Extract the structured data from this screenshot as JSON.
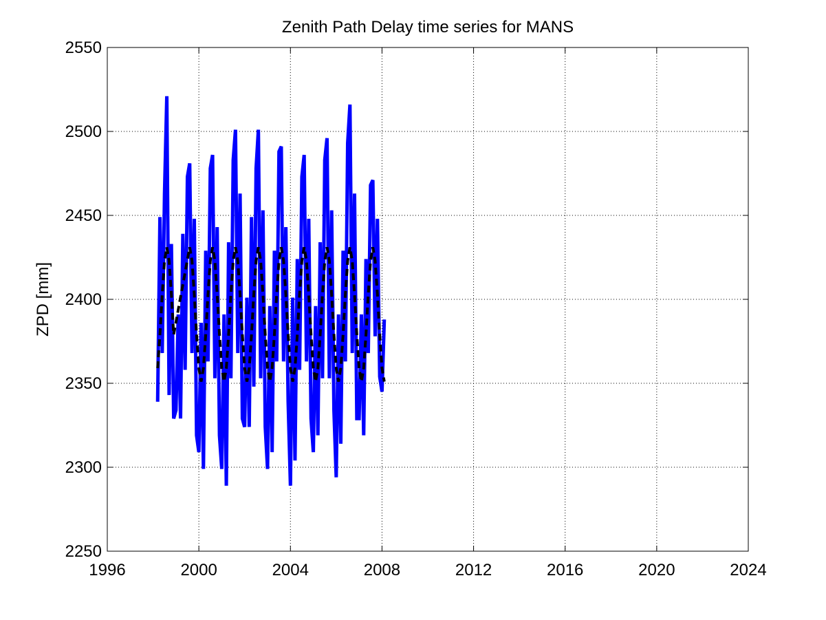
{
  "chart_data": {
    "type": "line",
    "title": "Zenith Path Delay time series for MANS",
    "y_label": "ZPD [mm]",
    "xlim": [
      1996,
      2024
    ],
    "xticks": [
      1996,
      2000,
      2004,
      2008,
      2012,
      2016,
      2020,
      2024
    ],
    "ylim": [
      2250,
      2550
    ],
    "yticks": [
      2250,
      2300,
      2350,
      2400,
      2450,
      2500,
      2550
    ],
    "grid": true,
    "series": [
      {
        "color": "#0000ff",
        "dash": false,
        "x": [
          1998.2,
          1998.3,
          1998.4,
          1998.5,
          1998.6,
          1998.7,
          1998.8,
          1998.9,
          1999.0,
          1999.1,
          1999.2,
          1999.3,
          1999.4,
          1999.5,
          1999.6,
          1999.7,
          1999.8,
          1999.9,
          2000.0,
          2000.1,
          2000.2,
          2000.3,
          2000.4,
          2000.5,
          2000.6,
          2000.7,
          2000.8,
          2000.9,
          2001.0,
          2001.1,
          2001.2,
          2001.3,
          2001.4,
          2001.5,
          2001.6,
          2001.7,
          2001.8,
          2001.9,
          2002.0,
          2002.1,
          2002.2,
          2002.3,
          2002.4,
          2002.5,
          2002.6,
          2002.7,
          2002.8,
          2002.9,
          2003.0,
          2003.1,
          2003.2,
          2003.3,
          2003.4,
          2003.5,
          2003.6,
          2003.7,
          2003.8,
          2003.9,
          2004.0,
          2004.1,
          2004.2,
          2004.3,
          2004.4,
          2004.5,
          2004.6,
          2004.7,
          2004.8,
          2004.9,
          2005.0,
          2005.1,
          2005.2,
          2005.3,
          2005.4,
          2005.5,
          2005.6,
          2005.7,
          2005.8,
          2005.9,
          2006.0,
          2006.1,
          2006.2,
          2006.3,
          2006.4,
          2006.5,
          2006.6,
          2006.7,
          2006.8,
          2006.9,
          2007.0,
          2007.1,
          2007.2,
          2007.3,
          2007.4,
          2007.5,
          2007.6,
          2007.7,
          2007.8,
          2007.9,
          2008.0,
          2008.1
        ],
        "values": [
          2339,
          2449,
          2368,
          2463,
          2521,
          2343,
          2433,
          2329,
          2334,
          2391,
          2329,
          2439,
          2358,
          2473,
          2481,
          2368,
          2448,
          2319,
          2309,
          2386,
          2299,
          2429,
          2363,
          2478,
          2486,
          2353,
          2443,
          2319,
          2299,
          2391,
          2289,
          2434,
          2353,
          2483,
          2501,
          2368,
          2463,
          2329,
          2324,
          2401,
          2324,
          2449,
          2348,
          2478,
          2501,
          2353,
          2453,
          2324,
          2299,
          2396,
          2309,
          2429,
          2363,
          2488,
          2491,
          2363,
          2443,
          2339,
          2289,
          2401,
          2304,
          2424,
          2358,
          2473,
          2486,
          2363,
          2448,
          2329,
          2309,
          2396,
          2319,
          2434,
          2353,
          2483,
          2496,
          2353,
          2453,
          2334,
          2294,
          2391,
          2314,
          2429,
          2363,
          2493,
          2516,
          2368,
          2463,
          2329,
          2329,
          2391,
          2319,
          2424,
          2368,
          2468,
          2471,
          2378,
          2448,
          2354,
          2345,
          2388
        ]
      },
      {
        "color": "#000000",
        "dash": true,
        "x": [
          1998.2,
          1998.3,
          1998.4,
          1998.5,
          1998.6,
          1998.7,
          1998.8,
          1998.9,
          1999.6,
          1999.7,
          1999.8,
          1999.9,
          2000.0,
          2000.1,
          2000.2,
          2000.3,
          2000.4,
          2000.5,
          2000.6,
          2000.7,
          2000.8,
          2000.9,
          2001.0,
          2001.1,
          2001.2,
          2001.3,
          2001.4,
          2001.5,
          2001.6,
          2001.7,
          2001.8,
          2001.9,
          2002.0,
          2002.1,
          2002.2,
          2002.3,
          2002.4,
          2002.5,
          2002.6,
          2002.7,
          2002.8,
          2002.9,
          2003.0,
          2003.1,
          2003.2,
          2003.3,
          2003.4,
          2003.5,
          2003.6,
          2003.7,
          2003.8,
          2003.9,
          2004.0,
          2004.1,
          2004.2,
          2004.3,
          2004.4,
          2004.5,
          2004.6,
          2004.7,
          2004.8,
          2004.9,
          2005.0,
          2005.1,
          2005.2,
          2005.3,
          2005.4,
          2005.5,
          2005.6,
          2005.7,
          2005.8,
          2005.9,
          2006.0,
          2006.1,
          2006.2,
          2006.3,
          2006.4,
          2006.5,
          2006.6,
          2006.7,
          2006.8,
          2006.9,
          2007.0,
          2007.1,
          2007.2,
          2007.3,
          2007.4,
          2007.5,
          2007.6,
          2007.7,
          2007.8,
          2007.9,
          2008.0,
          2008.1
        ],
        "values": [
          2359,
          2379,
          2403,
          2423,
          2431,
          2423,
          2403,
          2379,
          2431,
          2423,
          2403,
          2379,
          2359,
          2351,
          2359,
          2379,
          2403,
          2423,
          2431,
          2423,
          2403,
          2379,
          2359,
          2351,
          2359,
          2379,
          2403,
          2423,
          2431,
          2423,
          2403,
          2379,
          2359,
          2351,
          2359,
          2379,
          2403,
          2423,
          2431,
          2423,
          2403,
          2379,
          2359,
          2351,
          2359,
          2379,
          2403,
          2423,
          2431,
          2423,
          2403,
          2379,
          2359,
          2351,
          2359,
          2379,
          2403,
          2423,
          2431,
          2423,
          2403,
          2379,
          2359,
          2351,
          2359,
          2379,
          2403,
          2423,
          2431,
          2423,
          2403,
          2379,
          2359,
          2351,
          2359,
          2379,
          2403,
          2423,
          2431,
          2423,
          2403,
          2379,
          2359,
          2351,
          2359,
          2379,
          2403,
          2423,
          2431,
          2423,
          2403,
          2379,
          2359,
          2351
        ]
      }
    ]
  }
}
